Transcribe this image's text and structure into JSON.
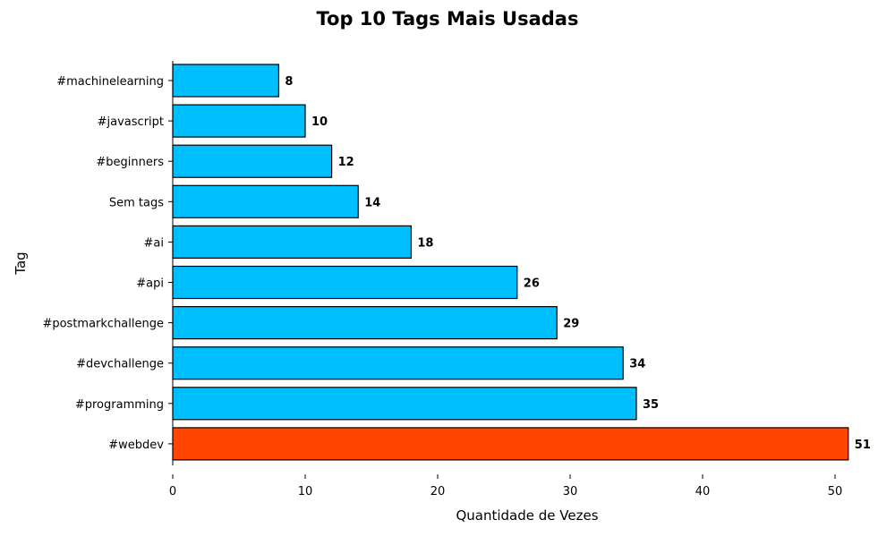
{
  "chart_data": {
    "type": "bar",
    "orientation": "horizontal",
    "title": "Top 10 Tags Mais Usadas",
    "xlabel": "Quantidade de Vezes",
    "ylabel": "Tag",
    "categories": [
      "#webdev",
      "#programming",
      "#devchallenge",
      "#postmarkchallenge",
      "#api",
      "#ai",
      "Sem tags",
      "#beginners",
      "#javascript",
      "#machinelearning"
    ],
    "values": [
      51,
      35,
      34,
      29,
      26,
      18,
      14,
      12,
      10,
      8
    ],
    "xlim": [
      0,
      52
    ],
    "xticks": [
      0,
      10,
      20,
      30,
      40,
      50
    ],
    "grid": false,
    "bar_color": "#00BFFF",
    "highlight_color": "#FF4500",
    "highlight_index": 0,
    "edge_color": "#000000"
  }
}
